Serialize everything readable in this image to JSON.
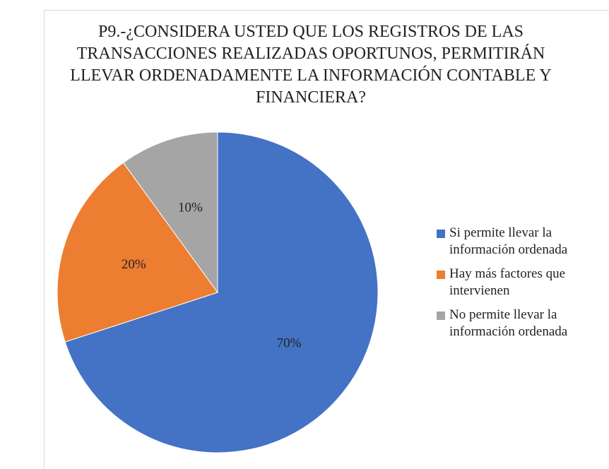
{
  "chart_data": {
    "type": "pie",
    "title": "P9.-¿CONSIDERA USTED QUE LOS REGISTROS DE LAS TRANSACCIONES REALIZADAS OPORTUNOS, PERMITIRÁN LLEVAR ORDENADAMENTE LA INFORMACIÓN CONTABLE Y FINANCIERA?",
    "categories": [
      "Si permite llevar la información ordenada",
      "Hay más factores que intervienen",
      "No permite llevar la información ordenada"
    ],
    "values": [
      70,
      20,
      10
    ],
    "value_labels": [
      "70%",
      "20%",
      "10%"
    ],
    "colors": [
      "#4472c4",
      "#ed7d31",
      "#a5a5a5"
    ],
    "legend": "right"
  }
}
